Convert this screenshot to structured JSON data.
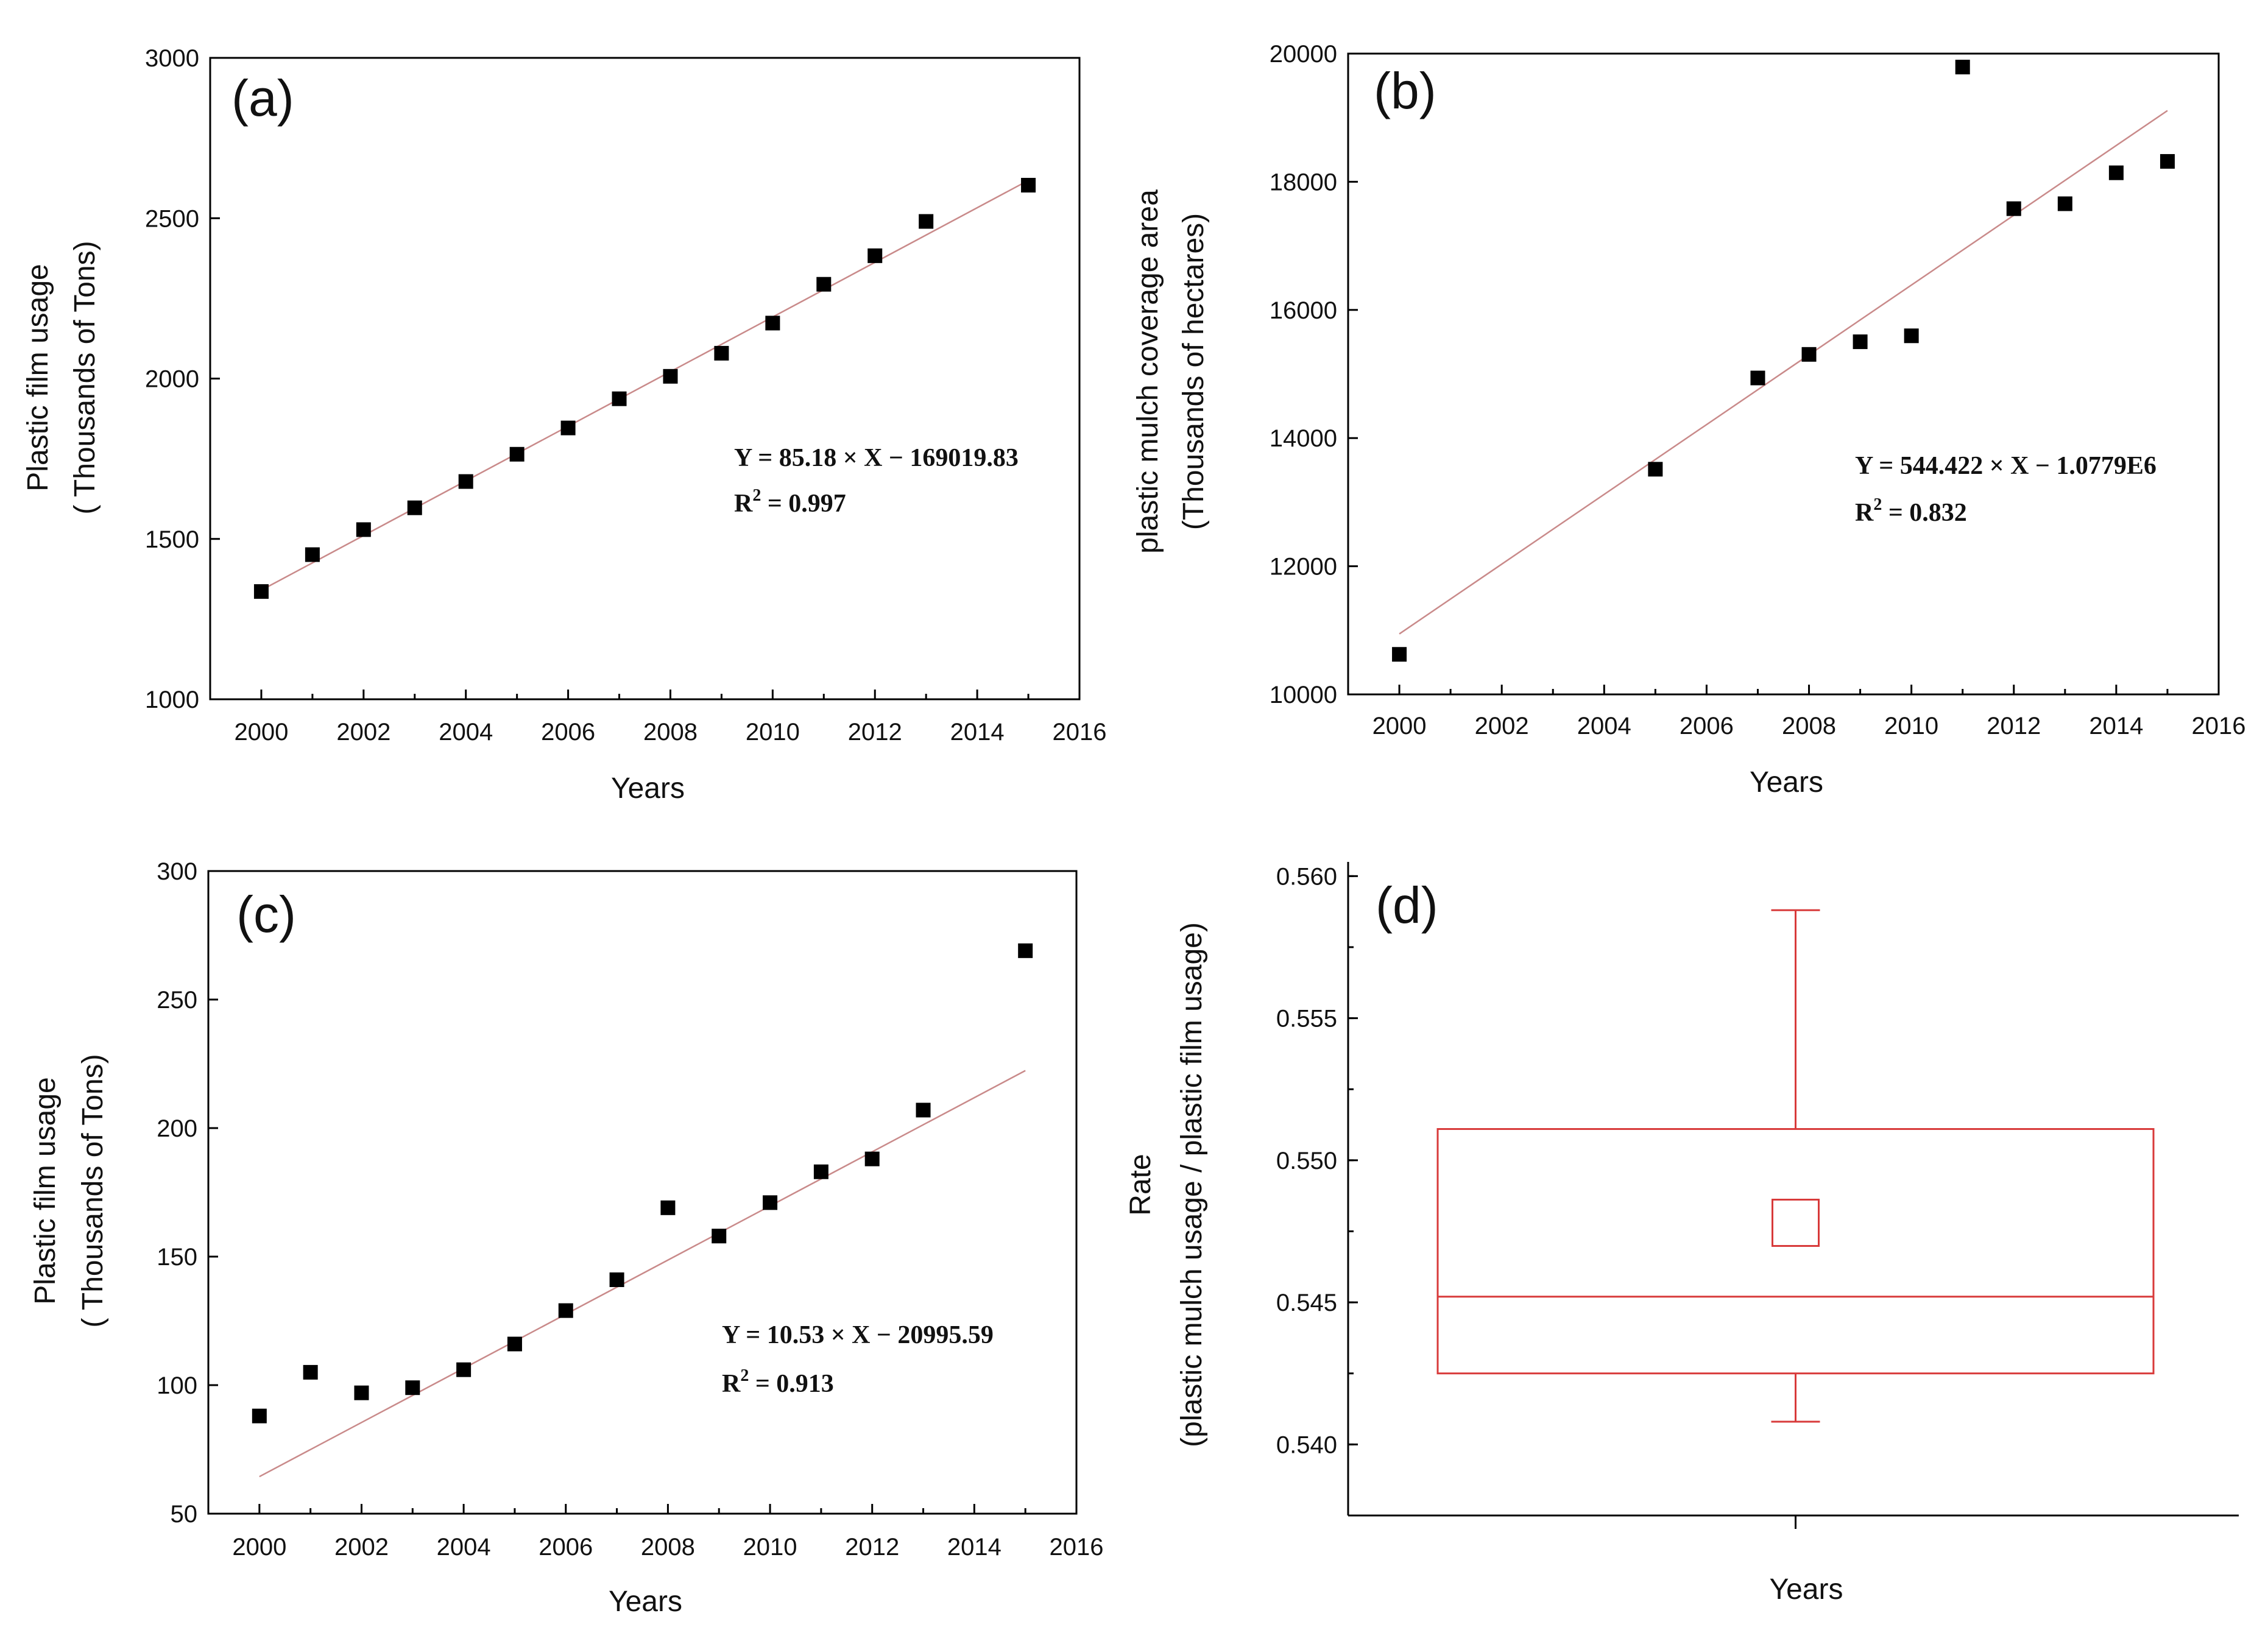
{
  "chart_data": [
    {
      "id": "a",
      "type": "scatter",
      "panel_label": "(a)",
      "xlabel": "Years",
      "ylabel_lines": [
        "Plastic film usage",
        "( Thousands of Tons)"
      ],
      "xlim": [
        1999,
        2016
      ],
      "ylim": [
        1000,
        3000
      ],
      "xticks": [
        2000,
        2002,
        2004,
        2006,
        2008,
        2010,
        2012,
        2014,
        2016
      ],
      "yticks": [
        1000,
        1500,
        2000,
        2500,
        3000
      ],
      "x": [
        2000,
        2001,
        2002,
        2003,
        2004,
        2005,
        2006,
        2007,
        2008,
        2009,
        2010,
        2011,
        2012,
        2013,
        2015
      ],
      "y": [
        1336,
        1451,
        1529,
        1597,
        1679,
        1764,
        1846,
        1937,
        2007,
        2079,
        2173,
        2294,
        2383,
        2490,
        2603
      ],
      "fit": {
        "slope": 85.18,
        "intercept": -169019.83,
        "x_range": [
          2000,
          2015
        ]
      },
      "equation": "Y = 85.18 × X − 169019.83",
      "r2_label": "R",
      "r2_sup": "2",
      "r2_value": " = 0.997"
    },
    {
      "id": "b",
      "type": "scatter",
      "panel_label": "(b)",
      "xlabel": "Years",
      "ylabel_lines": [
        "plastic mulch coverage area",
        "(Thousands of hectares)"
      ],
      "xlim": [
        1999,
        2016
      ],
      "ylim": [
        10000,
        20000
      ],
      "xticks": [
        2000,
        2002,
        2004,
        2006,
        2008,
        2010,
        2012,
        2014,
        2016
      ],
      "yticks": [
        10000,
        12000,
        14000,
        16000,
        18000,
        20000
      ],
      "x": [
        2000,
        2005,
        2007,
        2008,
        2009,
        2010,
        2011,
        2012,
        2013,
        2014,
        2015
      ],
      "y": [
        10625,
        13514,
        14938,
        15306,
        15503,
        15596,
        19790,
        17580,
        17657,
        18140,
        18318
      ],
      "fit": {
        "slope": 544.422,
        "intercept": -1077900,
        "x_range": [
          2000,
          2015
        ]
      },
      "equation": "Y = 544.422 × X − 1.0779E6",
      "r2_label": "R",
      "r2_sup": "2",
      "r2_value": " = 0.832"
    },
    {
      "id": "c",
      "type": "scatter",
      "panel_label": "(c)",
      "xlabel": "Years",
      "ylabel_lines": [
        "Plastic film usage",
        "( Thousands of Tons)"
      ],
      "xlim": [
        1999,
        2016
      ],
      "ylim": [
        50,
        300
      ],
      "xticks": [
        2000,
        2002,
        2004,
        2006,
        2008,
        2010,
        2012,
        2014,
        2016
      ],
      "yticks": [
        50,
        100,
        150,
        200,
        250,
        300
      ],
      "x": [
        2000,
        2001,
        2002,
        2003,
        2004,
        2005,
        2006,
        2007,
        2008,
        2009,
        2010,
        2011,
        2012,
        2013,
        2015
      ],
      "y": [
        88,
        105,
        97,
        99,
        106,
        116,
        129,
        141,
        169,
        158,
        171,
        183,
        188,
        207,
        269
      ],
      "fit": {
        "slope": 10.53,
        "intercept": -20995.59,
        "x_range": [
          2000,
          2015
        ]
      },
      "equation": "Y = 10.53 × X − 20995.59",
      "r2_label": "R",
      "r2_sup": "2",
      "r2_value": " = 0.913"
    },
    {
      "id": "d",
      "type": "box",
      "panel_label": "(d)",
      "xlabel": "Years",
      "ylabel_lines": [
        "Rate",
        "(plastic mulch usage / plastic film usage)"
      ],
      "ylim": [
        0.5375,
        0.5605
      ],
      "yticks": [
        0.54,
        0.545,
        0.55,
        0.555,
        0.56
      ],
      "ytick_labels": [
        "0.540",
        "0.545",
        "0.550",
        "0.555",
        "0.560"
      ],
      "whisker_low": 0.5408,
      "q1": 0.5425,
      "median": 0.5452,
      "q3": 0.5511,
      "whisker_high": 0.5588,
      "mean": 0.5478,
      "color": "#d83a3a"
    }
  ]
}
